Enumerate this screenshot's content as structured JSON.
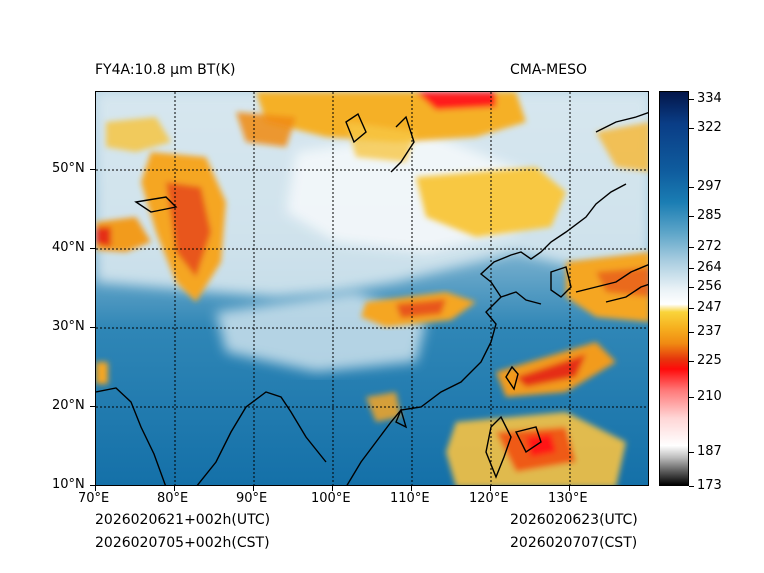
{
  "header": {
    "product": "FY4A:10.8 µm BT(K)",
    "agency": "CMA-MESO"
  },
  "map": {
    "lon_labels": [
      "70°E",
      "80°E",
      "90°E",
      "100°E",
      "110°E",
      "120°E",
      "130°E"
    ],
    "lat_labels": [
      "50°N",
      "40°N",
      "30°N",
      "20°N",
      "10°N"
    ]
  },
  "colorbar": {
    "labels": [
      "334",
      "322",
      "297",
      "285",
      "272",
      "264",
      "256",
      "247",
      "237",
      "225",
      "210",
      "187",
      "173"
    ],
    "colors": {
      "warm": "#1a7db3",
      "cold_orange": "#f08a12",
      "cold_red": "#ff0a0a"
    }
  },
  "footer": {
    "init_utc": "2026020621+002h(UTC)",
    "init_cst": "2026020705+002h(CST)",
    "valid_utc": "2026020623(UTC)",
    "valid_cst": "2026020707(CST)"
  }
}
